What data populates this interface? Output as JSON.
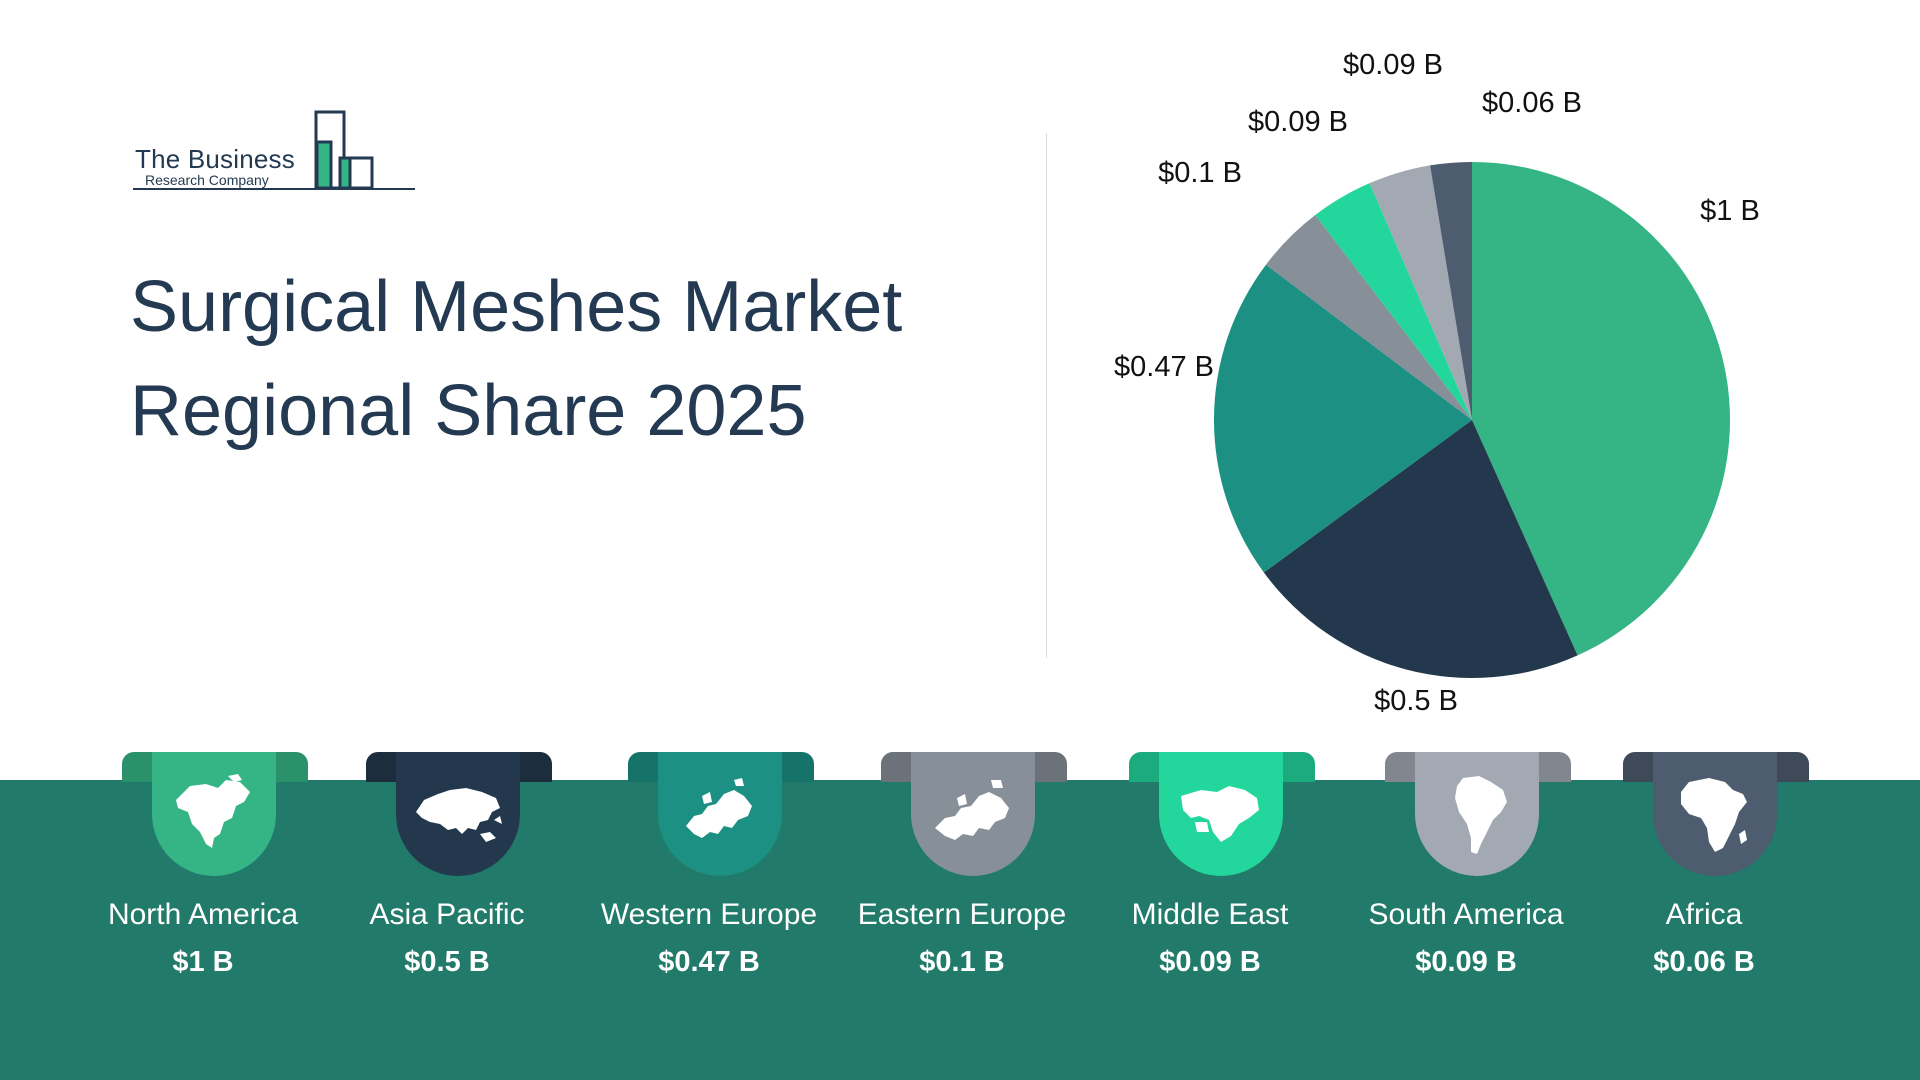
{
  "logo": {
    "name": "The Business",
    "sub": "Research Company"
  },
  "title": {
    "line1": "Surgical Meshes Market",
    "line2": "Regional Share 2025"
  },
  "chart_data": {
    "type": "pie",
    "title": "Surgical Meshes Market Regional Share 2025",
    "unit": "$ B",
    "categories": [
      "North America",
      "Asia Pacific",
      "Western Europe",
      "Eastern Europe",
      "Middle East",
      "South America",
      "Africa"
    ],
    "values": [
      1,
      0.5,
      0.47,
      0.1,
      0.09,
      0.09,
      0.06
    ],
    "labels": [
      "$1 B",
      "$0.5 B",
      "$0.47 B",
      "$0.1 B",
      "$0.09 B",
      "$0.09 B",
      "$0.06 B"
    ],
    "colors": [
      "#35b586",
      "#23384d",
      "#1b9083",
      "#878f98",
      "#22d69c",
      "#a3a9b3",
      "#4d5c6e"
    ],
    "start": "12 o'clock",
    "direction": "clockwise",
    "legend": "none"
  },
  "regions": [
    {
      "name": "North America",
      "value": "$1 B",
      "icon": "north-america-map-icon",
      "color": "#35b586"
    },
    {
      "name": "Asia Pacific",
      "value": "$0.5 B",
      "icon": "asia-map-icon",
      "color": "#23384d"
    },
    {
      "name": "Western Europe",
      "value": "$0.47 B",
      "icon": "western-europe-map-icon",
      "color": "#1b9083"
    },
    {
      "name": "Eastern Europe",
      "value": "$0.1 B",
      "icon": "eastern-europe-map-icon",
      "color": "#878f98"
    },
    {
      "name": "Middle East",
      "value": "$0.09 B",
      "icon": "middle-east-map-icon",
      "color": "#22d69c"
    },
    {
      "name": "South America",
      "value": "$0.09 B",
      "icon": "south-america-map-icon",
      "color": "#a3a9b3"
    },
    {
      "name": "Africa",
      "value": "$0.06 B",
      "icon": "africa-map-icon",
      "color": "#4d5c6e"
    }
  ],
  "colors": {
    "band": "#217a6a",
    "title_text": "#233a52"
  }
}
